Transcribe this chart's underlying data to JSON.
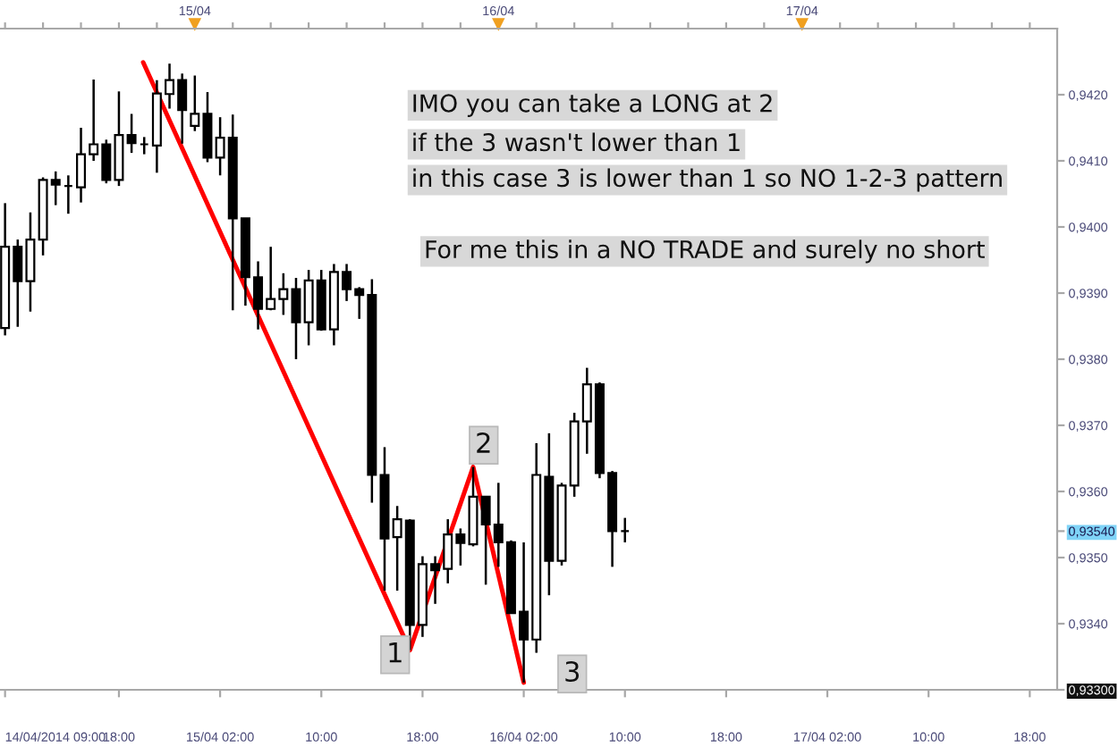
{
  "chart_data": {
    "type": "candlestick",
    "x": [
      "2014-04-14T09:00",
      "2014-04-14T10:00",
      "2014-04-14T11:00",
      "2014-04-14T12:00",
      "2014-04-14T13:00",
      "2014-04-14T14:00",
      "2014-04-14T15:00",
      "2014-04-14T16:00",
      "2014-04-14T17:00",
      "2014-04-14T18:00",
      "2014-04-14T19:00",
      "2014-04-14T20:00",
      "2014-04-14T21:00",
      "2014-04-14T22:00",
      "2014-04-14T23:00",
      "2014-04-15T00:00",
      "2014-04-15T01:00",
      "2014-04-15T02:00",
      "2014-04-15T03:00",
      "2014-04-15T04:00",
      "2014-04-15T05:00",
      "2014-04-15T06:00",
      "2014-04-15T07:00",
      "2014-04-15T08:00",
      "2014-04-15T09:00",
      "2014-04-15T10:00",
      "2014-04-15T11:00",
      "2014-04-15T12:00",
      "2014-04-15T13:00",
      "2014-04-15T14:00",
      "2014-04-15T15:00",
      "2014-04-15T16:00",
      "2014-04-15T17:00",
      "2014-04-15T18:00",
      "2014-04-15T19:00",
      "2014-04-15T20:00",
      "2014-04-15T21:00",
      "2014-04-15T22:00",
      "2014-04-15T23:00",
      "2014-04-16T00:00",
      "2014-04-16T01:00",
      "2014-04-16T02:00",
      "2014-04-16T03:00",
      "2014-04-16T04:00",
      "2014-04-16T05:00",
      "2014-04-16T06:00",
      "2014-04-16T07:00",
      "2014-04-16T08:00",
      "2014-04-16T09:00",
      "2014-04-16T10:00"
    ],
    "ohlc": [
      [
        0.93847,
        0.94036,
        0.93836,
        0.9397
      ],
      [
        0.9397,
        0.93981,
        0.93849,
        0.93918
      ],
      [
        0.93918,
        0.94022,
        0.93872,
        0.93981
      ],
      [
        0.93981,
        0.94075,
        0.93957,
        0.94071
      ],
      [
        0.94071,
        0.94084,
        0.94033,
        0.94064
      ],
      [
        0.94062,
        0.94078,
        0.9402,
        0.94062
      ],
      [
        0.9406,
        0.9415,
        0.94037,
        0.9411
      ],
      [
        0.9411,
        0.94223,
        0.941,
        0.94125
      ],
      [
        0.94125,
        0.94132,
        0.94066,
        0.94071
      ],
      [
        0.94071,
        0.94205,
        0.94062,
        0.94139
      ],
      [
        0.94139,
        0.94171,
        0.94112,
        0.94127
      ],
      [
        0.94125,
        0.94136,
        0.9411,
        0.94125
      ],
      [
        0.94123,
        0.94222,
        0.94082,
        0.94202
      ],
      [
        0.94201,
        0.94247,
        0.94179,
        0.94222
      ],
      [
        0.94222,
        0.94232,
        0.94126,
        0.94177
      ],
      [
        0.94153,
        0.94229,
        0.94145,
        0.94171
      ],
      [
        0.94171,
        0.94204,
        0.94098,
        0.94105
      ],
      [
        0.94105,
        0.94166,
        0.94078,
        0.94135
      ],
      [
        0.94135,
        0.9417,
        0.93874,
        0.94013
      ],
      [
        0.94013,
        0.94013,
        0.93881,
        0.93924
      ],
      [
        0.93924,
        0.93948,
        0.93845,
        0.93876
      ],
      [
        0.93876,
        0.9397,
        0.93874,
        0.93891
      ],
      [
        0.93891,
        0.9393,
        0.93867,
        0.93906
      ],
      [
        0.93906,
        0.93923,
        0.938,
        0.93856
      ],
      [
        0.93856,
        0.93935,
        0.93821,
        0.93919
      ],
      [
        0.93919,
        0.93935,
        0.93843,
        0.93845
      ],
      [
        0.93845,
        0.93944,
        0.93821,
        0.93932
      ],
      [
        0.93932,
        0.93944,
        0.93888,
        0.93906
      ],
      [
        0.93906,
        0.93909,
        0.93861,
        0.93897
      ],
      [
        0.93897,
        0.93921,
        0.93583,
        0.93625
      ],
      [
        0.93625,
        0.93667,
        0.9345,
        0.93529
      ],
      [
        0.93531,
        0.93578,
        0.9345,
        0.93558
      ],
      [
        0.93556,
        0.93558,
        0.9336,
        0.93398
      ],
      [
        0.93398,
        0.93502,
        0.9338,
        0.9349
      ],
      [
        0.9349,
        0.93502,
        0.9343,
        0.93481
      ],
      [
        0.93483,
        0.93558,
        0.93461,
        0.93535
      ],
      [
        0.93535,
        0.93544,
        0.93488,
        0.93522
      ],
      [
        0.9352,
        0.93637,
        0.93517,
        0.93592
      ],
      [
        0.93592,
        0.93592,
        0.93459,
        0.9355
      ],
      [
        0.9355,
        0.93613,
        0.93486,
        0.93523
      ],
      [
        0.93523,
        0.93526,
        0.93416,
        0.93416
      ],
      [
        0.93418,
        0.93523,
        0.93311,
        0.93376
      ],
      [
        0.93376,
        0.93673,
        0.93356,
        0.93625
      ],
      [
        0.93622,
        0.93688,
        0.93443,
        0.93495
      ],
      [
        0.93495,
        0.93613,
        0.93488,
        0.93609
      ],
      [
        0.93609,
        0.93719,
        0.93592,
        0.93706
      ],
      [
        0.93706,
        0.93787,
        0.93657,
        0.93762
      ],
      [
        0.93762,
        0.93765,
        0.9362,
        0.93628
      ],
      [
        0.93628,
        0.93631,
        0.93486,
        0.9354
      ],
      [
        0.9354,
        0.9356,
        0.93523,
        0.9354
      ]
    ],
    "series": [
      {
        "type": "line",
        "color": "#ff0000",
        "line_style": "solid",
        "x": [
          "2014-04-14T19:55",
          "2014-04-15T17:00",
          "2014-04-15T22:00",
          "2014-04-16T02:00"
        ],
        "values": [
          0.94249,
          0.9336,
          0.93637,
          0.93311
        ]
      }
    ],
    "xlim": [
      "2014-04-14T08:36",
      "2014-04-17T20:10"
    ],
    "xticks": [
      {
        "value": "2014-04-14T09:00",
        "label": "14/04/2014 09:00"
      },
      {
        "value": "2014-04-14T18:00",
        "label": "18:00"
      },
      {
        "value": "2014-04-15T02:00",
        "label": "15/04 02:00"
      },
      {
        "value": "2014-04-15T10:00",
        "label": "10:00"
      },
      {
        "value": "2014-04-15T18:00",
        "label": "18:00"
      },
      {
        "value": "2014-04-16T02:00",
        "label": "16/04 02:00"
      },
      {
        "value": "2014-04-16T10:00",
        "label": "10:00"
      },
      {
        "value": "2014-04-16T18:00",
        "label": "18:00"
      },
      {
        "value": "2014-04-17T02:00",
        "label": "17/04 02:00"
      },
      {
        "value": "2014-04-17T10:00",
        "label": "10:00"
      },
      {
        "value": "2014-04-17T18:00",
        "label": "18:00"
      }
    ],
    "x2lim": [
      "2014-04-14T08:36",
      "2014-04-17T20:10"
    ],
    "x2ticks": [
      {
        "value": "2014-04-14T09:00",
        "label": null
      },
      {
        "value": "2014-04-14T12:00",
        "label": null
      },
      {
        "value": "2014-04-14T15:00",
        "label": null
      },
      {
        "value": "2014-04-14T18:00",
        "label": null
      },
      {
        "value": "2014-04-14T21:00",
        "label": null
      },
      {
        "value": "2014-04-15T00:00",
        "label": "15/04"
      },
      {
        "value": "2014-04-15T03:00",
        "label": null
      },
      {
        "value": "2014-04-15T06:00",
        "label": null
      },
      {
        "value": "2014-04-15T09:00",
        "label": null
      },
      {
        "value": "2014-04-15T12:00",
        "label": null
      },
      {
        "value": "2014-04-15T15:00",
        "label": null
      },
      {
        "value": "2014-04-15T18:00",
        "label": null
      },
      {
        "value": "2014-04-15T21:00",
        "label": null
      },
      {
        "value": "2014-04-16T00:00",
        "label": "16/04"
      },
      {
        "value": "2014-04-16T03:00",
        "label": null
      },
      {
        "value": "2014-04-16T06:00",
        "label": null
      },
      {
        "value": "2014-04-16T09:00",
        "label": null
      },
      {
        "value": "2014-04-16T12:00",
        "label": null
      },
      {
        "value": "2014-04-16T15:00",
        "label": null
      },
      {
        "value": "2014-04-16T18:00",
        "label": null
      },
      {
        "value": "2014-04-16T21:00",
        "label": null
      },
      {
        "value": "2014-04-17T00:00",
        "label": "17/04"
      },
      {
        "value": "2014-04-17T03:00",
        "label": null
      },
      {
        "value": "2014-04-17T06:00",
        "label": null
      },
      {
        "value": "2014-04-17T09:00",
        "label": null
      },
      {
        "value": "2014-04-17T12:00",
        "label": null
      },
      {
        "value": "2014-04-17T15:00",
        "label": null
      },
      {
        "value": "2014-04-17T18:00",
        "label": null
      }
    ],
    "ylim": [
      0.933,
      0.943
    ],
    "yticks": [
      {
        "value": 0.933,
        "label": "0,93300"
      },
      {
        "value": 0.934,
        "label": "0,9340"
      },
      {
        "value": 0.935,
        "label": "0,9350"
      },
      {
        "value": 0.9354,
        "label": "0,93540"
      },
      {
        "value": 0.936,
        "label": "0,9360"
      },
      {
        "value": 0.937,
        "label": "0,9370"
      },
      {
        "value": 0.938,
        "label": "0,9380"
      },
      {
        "value": 0.939,
        "label": "0,9390"
      },
      {
        "value": 0.94,
        "label": "0,9400"
      },
      {
        "value": 0.941,
        "label": "0,9410"
      },
      {
        "value": 0.942,
        "label": "0,9420"
      }
    ],
    "annotations": [
      "IMO you can take a LONG at 2",
      "if the 3 wasn't lower than 1",
      "in this case 3 is lower than 1 so NO 1-2-3 pattern",
      "For me this in a NO TRADE and surely no short",
      {
        "text": "1",
        "x": "2014-04-15T15:50",
        "y": 0.93353
      },
      {
        "text": "2",
        "x": "2014-04-15T22:50",
        "y": 0.9367
      },
      {
        "text": "3",
        "x": "2014-04-16T05:50",
        "y": 0.93324
      }
    ]
  }
}
